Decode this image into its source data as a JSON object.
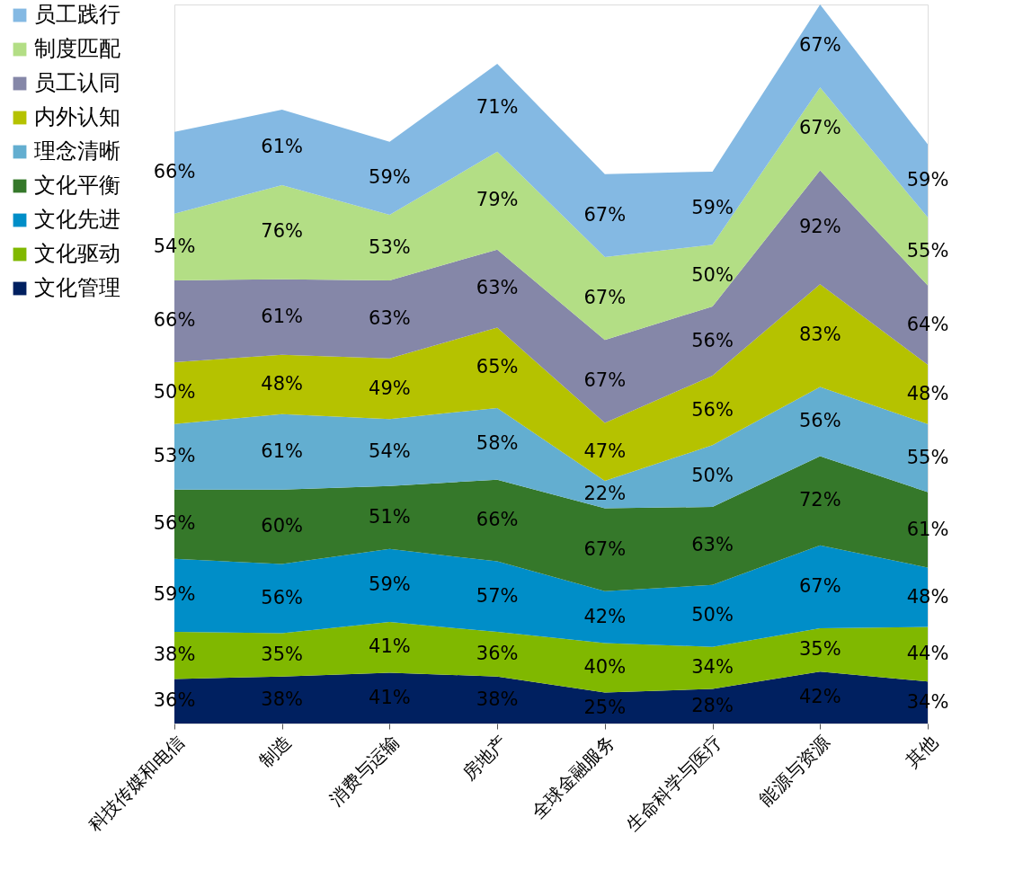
{
  "chart_data": {
    "type": "area",
    "stacked": true,
    "legend": "left",
    "categories": [
      "科技传媒和电信",
      "制造",
      "消费与运输",
      "房地产",
      "全球金融服务",
      "生命科学与医疗",
      "能源与资源",
      "其他"
    ],
    "series": [
      {
        "name": "文化管理",
        "color": "#002060",
        "values": [
          36,
          38,
          41,
          38,
          25,
          28,
          42,
          34
        ],
        "value_labels": [
          "36%",
          "38%",
          "41%",
          "38%",
          "25%",
          "28%",
          "42%",
          "34%"
        ]
      },
      {
        "name": "文化驱动",
        "color": "#80b800",
        "values": [
          38,
          35,
          41,
          36,
          40,
          34,
          35,
          44
        ],
        "value_labels": [
          "38%",
          "35%",
          "41%",
          "36%",
          "40%",
          "34%",
          "35%",
          "44%"
        ]
      },
      {
        "name": "文化先进",
        "color": "#008ec8",
        "values": [
          59,
          56,
          59,
          57,
          42,
          50,
          67,
          48
        ],
        "value_labels": [
          "59%",
          "56%",
          "59%",
          "57%",
          "42%",
          "50%",
          "67%",
          "48%"
        ]
      },
      {
        "name": "文化平衡",
        "color": "#35782a",
        "values": [
          56,
          60,
          51,
          66,
          67,
          63,
          72,
          61
        ],
        "value_labels": [
          "56%",
          "60%",
          "51%",
          "66%",
          "67%",
          "63%",
          "72%",
          "61%"
        ]
      },
      {
        "name": "理念清晰",
        "color": "#63aed0",
        "values": [
          53,
          61,
          54,
          58,
          22,
          50,
          56,
          55
        ],
        "value_labels": [
          "53%",
          "61%",
          "54%",
          "58%",
          "22%",
          "50%",
          "56%",
          "55%"
        ]
      },
      {
        "name": "内外认知",
        "color": "#b5c200",
        "values": [
          50,
          48,
          49,
          65,
          47,
          56,
          83,
          48
        ],
        "value_labels": [
          "50%",
          "48%",
          "49%",
          "65%",
          "47%",
          "56%",
          "83%",
          "48%"
        ]
      },
      {
        "name": "员工认同",
        "color": "#8587a8",
        "values": [
          66,
          61,
          63,
          63,
          67,
          56,
          92,
          64
        ],
        "value_labels": [
          "66%",
          "61%",
          "63%",
          "63%",
          "67%",
          "56%",
          "92%",
          "64%"
        ]
      },
      {
        "name": "制度匹配",
        "color": "#b3de85",
        "values": [
          54,
          76,
          53,
          79,
          67,
          50,
          67,
          55
        ],
        "value_labels": [
          "54%",
          "76%",
          "53%",
          "79%",
          "67%",
          "50%",
          "67%",
          "55%"
        ]
      },
      {
        "name": "员工践行",
        "color": "#84b9e3",
        "values": [
          66,
          61,
          59,
          71,
          67,
          59,
          67,
          59
        ],
        "value_labels": [
          "66%",
          "61%",
          "59%",
          "71%",
          "67%",
          "59%",
          "67%",
          "59%"
        ]
      }
    ]
  }
}
